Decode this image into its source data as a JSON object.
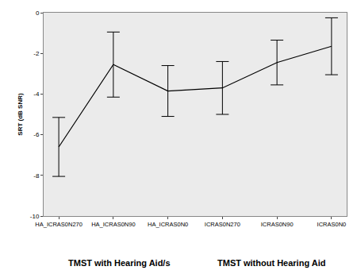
{
  "chart_data": {
    "type": "line",
    "y_label": "SRT (dB SNR)",
    "categories": [
      "HA_ICRAS0N270",
      "HA_ICRAS0N90",
      "HA_ICRAS0N0",
      "ICRAS0N270",
      "ICRAS0N90",
      "ICRAS0N0"
    ],
    "values": [
      -6.6,
      -2.55,
      -3.85,
      -3.7,
      -2.45,
      -1.65
    ],
    "errors": [
      1.45,
      1.6,
      1.25,
      1.3,
      1.1,
      1.4
    ],
    "color": "#000000",
    "marker": "none",
    "ylim": [
      -10,
      0
    ],
    "yticks": [
      0,
      -2,
      -4,
      -6,
      -8,
      -10
    ],
    "grid": false,
    "annotations": [
      "TMST with Hearing Aid/s",
      "TMST without Hearing Aid"
    ]
  }
}
